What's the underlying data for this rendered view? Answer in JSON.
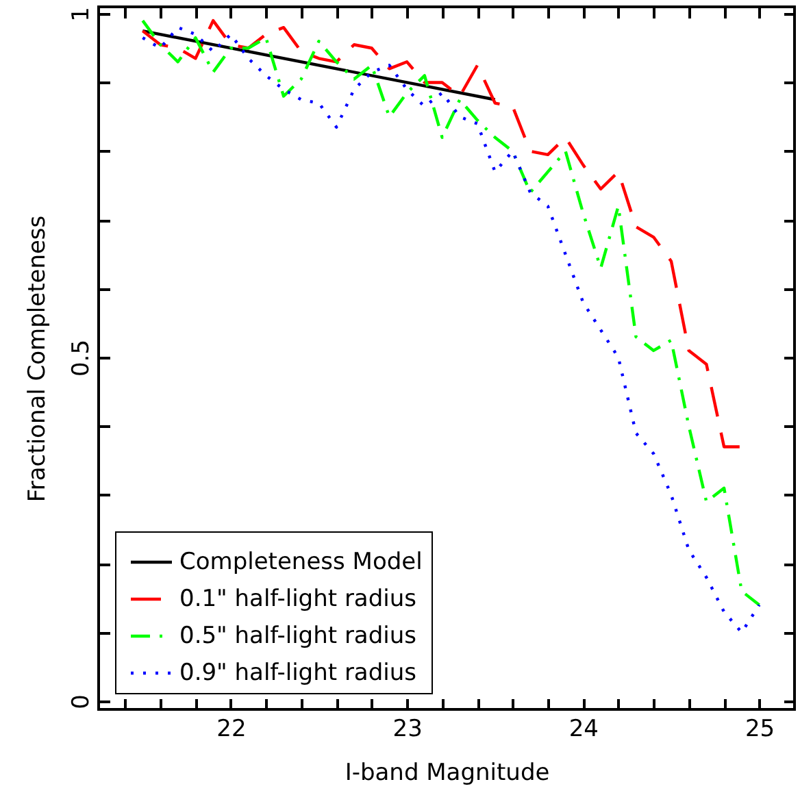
{
  "chart_data": {
    "type": "line",
    "xlabel": "I-band Magnitude",
    "ylabel": "Fractional Completeness",
    "xlim": [
      21.25,
      25.2
    ],
    "ylim": [
      -0.012,
      1.01
    ],
    "xticks": [
      {
        "value": 21.4,
        "label": null
      },
      {
        "value": 21.6,
        "label": null
      },
      {
        "value": 21.8,
        "label": null
      },
      22,
      {
        "value": 22.2,
        "label": null
      },
      {
        "value": 22.4,
        "label": null
      },
      {
        "value": 22.6,
        "label": null
      },
      {
        "value": 22.8,
        "label": null
      },
      23,
      {
        "value": 23.2,
        "label": null
      },
      {
        "value": 23.4,
        "label": null
      },
      {
        "value": 23.6,
        "label": null
      },
      {
        "value": 23.8,
        "label": null
      },
      24,
      {
        "value": 24.2,
        "label": null
      },
      {
        "value": 24.4,
        "label": null
      },
      {
        "value": 24.6,
        "label": null
      },
      {
        "value": 24.8,
        "label": null
      },
      25
    ],
    "yticks": [
      0,
      {
        "value": 0.1,
        "label": null
      },
      {
        "value": 0.2,
        "label": null
      },
      {
        "value": 0.3,
        "label": null
      },
      {
        "value": 0.4,
        "label": null
      },
      0.5,
      {
        "value": 0.6,
        "label": null
      },
      {
        "value": 0.7,
        "label": null
      },
      {
        "value": 0.8,
        "label": null
      },
      {
        "value": 0.9,
        "label": null
      },
      1
    ],
    "legend": "bottom left",
    "grid": false,
    "series": [
      {
        "name": "Completeness Model",
        "color": "#000000",
        "line_style": "solid",
        "x": [
          21.5,
          23.5
        ],
        "values": [
          0.975,
          0.875
        ]
      },
      {
        "name": "0.1\" half-light radius",
        "color": "#ff0000",
        "line_style": "dashed",
        "x": [
          21.5,
          21.6,
          21.7,
          21.8,
          21.9,
          22.0,
          22.1,
          22.2,
          22.3,
          22.4,
          22.5,
          22.6,
          22.7,
          22.8,
          22.9,
          23.0,
          23.1,
          23.2,
          23.3,
          23.4,
          23.5,
          23.6,
          23.7,
          23.8,
          23.9,
          24.0,
          24.1,
          24.2,
          24.3,
          24.4,
          24.5,
          24.6,
          24.7,
          24.8,
          24.9
        ],
        "values": [
          0.975,
          0.955,
          0.95,
          0.935,
          0.99,
          0.955,
          0.95,
          0.97,
          0.98,
          0.945,
          0.935,
          0.93,
          0.955,
          0.95,
          0.92,
          0.93,
          0.9,
          0.9,
          0.88,
          0.925,
          0.87,
          0.865,
          0.8,
          0.795,
          0.82,
          0.78,
          0.745,
          0.77,
          0.69,
          0.675,
          0.64,
          0.51,
          0.49,
          0.37,
          0.37
        ]
      },
      {
        "name": "0.5\" half-light radius",
        "color": "#00ff00",
        "line_style": "dashdot",
        "x": [
          21.5,
          21.6,
          21.7,
          21.8,
          21.9,
          22.0,
          22.1,
          22.2,
          22.3,
          22.4,
          22.5,
          22.6,
          22.7,
          22.8,
          22.9,
          23.0,
          23.1,
          23.2,
          23.3,
          23.4,
          23.5,
          23.6,
          23.7,
          23.8,
          23.9,
          24.0,
          24.1,
          24.2,
          24.3,
          24.4,
          24.5,
          24.6,
          24.7,
          24.8,
          24.9,
          25.0
        ],
        "values": [
          0.99,
          0.955,
          0.93,
          0.965,
          0.915,
          0.95,
          0.95,
          0.965,
          0.88,
          0.905,
          0.96,
          0.93,
          0.905,
          0.925,
          0.85,
          0.885,
          0.91,
          0.82,
          0.875,
          0.845,
          0.82,
          0.8,
          0.74,
          0.77,
          0.8,
          0.71,
          0.63,
          0.72,
          0.53,
          0.51,
          0.525,
          0.4,
          0.29,
          0.31,
          0.16,
          0.14
        ]
      },
      {
        "name": "0.9\" half-light radius",
        "color": "#0000ff",
        "line_style": "dotted",
        "x": [
          21.5,
          21.6,
          21.7,
          21.8,
          21.9,
          22.0,
          22.1,
          22.2,
          22.3,
          22.4,
          22.5,
          22.6,
          22.7,
          22.8,
          22.9,
          23.0,
          23.1,
          23.2,
          23.3,
          23.4,
          23.5,
          23.6,
          23.7,
          23.8,
          23.9,
          24.0,
          24.1,
          24.2,
          24.3,
          24.4,
          24.5,
          24.6,
          24.7,
          24.8,
          24.9,
          25.0
        ],
        "values": [
          0.965,
          0.95,
          0.98,
          0.97,
          0.945,
          0.97,
          0.935,
          0.91,
          0.89,
          0.875,
          0.87,
          0.835,
          0.89,
          0.915,
          0.925,
          0.89,
          0.865,
          0.885,
          0.85,
          0.84,
          0.77,
          0.8,
          0.74,
          0.72,
          0.65,
          0.58,
          0.54,
          0.5,
          0.39,
          0.36,
          0.3,
          0.22,
          0.18,
          0.13,
          0.1,
          0.14
        ]
      }
    ]
  }
}
